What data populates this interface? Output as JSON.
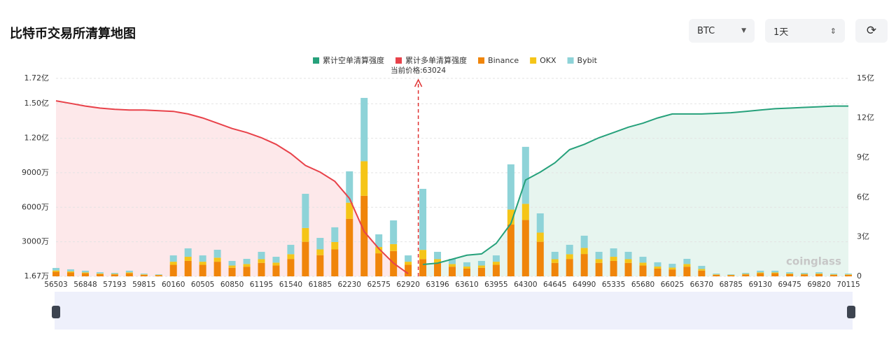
{
  "header": {
    "title": "比特币交易所清算地图",
    "symbol": "BTC",
    "interval": "1天"
  },
  "chart_data": {
    "type": "bar",
    "categories": [
      "56503",
      null,
      "56848",
      null,
      "57193",
      null,
      "59815",
      null,
      "60160",
      null,
      "60505",
      null,
      "60850",
      null,
      "61195",
      null,
      "61540",
      null,
      "61885",
      null,
      "62230",
      null,
      "62575",
      null,
      "62920",
      null,
      "63196",
      null,
      "63610",
      null,
      "63955",
      null,
      "64300",
      null,
      "64645",
      null,
      "64990",
      null,
      "65335",
      null,
      "65680",
      null,
      "66025",
      null,
      "66370",
      null,
      "68785",
      null,
      "69130",
      null,
      "69475",
      null,
      "69820",
      null,
      "70115"
    ],
    "series": [
      {
        "name": "累计空单清算强度",
        "type": "line",
        "axis": "y2",
        "color": "#26a17b",
        "fill": "#e7f5ef",
        "values": [
          null,
          null,
          null,
          null,
          null,
          null,
          null,
          null,
          null,
          null,
          null,
          null,
          null,
          null,
          null,
          null,
          null,
          null,
          null,
          null,
          null,
          null,
          null,
          null,
          null,
          90000000,
          100000000,
          130000000,
          160000000,
          170000000,
          250000000,
          400000000,
          730000000,
          790000000,
          860000000,
          960000000,
          1000000000,
          1050000000,
          1090000000,
          1130000000,
          1160000000,
          1200000000,
          1230000000,
          1230000000,
          1230000000,
          1235000000,
          1240000000,
          1250000000,
          1260000000,
          1270000000,
          1275000000,
          1280000000,
          1285000000,
          1290000000,
          1290000000
        ]
      },
      {
        "name": "累计多单清算强度",
        "type": "line",
        "axis": "y2",
        "color": "#e8424a",
        "fill": "#fde8ea",
        "values": [
          1330000000,
          1310000000,
          1290000000,
          1275000000,
          1265000000,
          1260000000,
          1260000000,
          1255000000,
          1250000000,
          1230000000,
          1200000000,
          1160000000,
          1120000000,
          1090000000,
          1050000000,
          1000000000,
          930000000,
          840000000,
          790000000,
          720000000,
          590000000,
          340000000,
          210000000,
          100000000,
          20000000,
          null,
          null,
          null,
          null,
          null,
          null,
          null,
          null,
          null,
          null,
          null,
          null,
          null,
          null,
          null,
          null,
          null,
          null,
          null,
          null,
          null,
          null,
          null,
          null,
          null,
          null,
          null,
          null,
          null,
          null
        ]
      },
      {
        "name": "Binance",
        "color": "#f0850a",
        "values": [
          4000000,
          3400000,
          2700000,
          2000000,
          1700000,
          2700000,
          1300000,
          1000000,
          10000000,
          13400000,
          10000000,
          12700000,
          7400000,
          8400000,
          11700000,
          9400000,
          15100000,
          30000000,
          18400000,
          23400000,
          50000000,
          70000000,
          20000000,
          22000000,
          10000000,
          15000000,
          11700000,
          8400000,
          6700000,
          7400000,
          10000000,
          45000000,
          49000000,
          30000000,
          11700000,
          15100000,
          19400000,
          11700000,
          13400000,
          11700000,
          9400000,
          6700000,
          6000000,
          8400000,
          5000000,
          1300000,
          1000000,
          1700000,
          2700000,
          2700000,
          2000000,
          1700000,
          2000000,
          1300000,
          1300000
        ]
      },
      {
        "name": "OKX",
        "color": "#f5c518",
        "values": [
          1100000,
          900000,
          700000,
          500000,
          400000,
          700000,
          400000,
          300000,
          2700000,
          3600000,
          2700000,
          3500000,
          2000000,
          2300000,
          3200000,
          2500000,
          4100000,
          12000000,
          5000000,
          6400000,
          14000000,
          30000000,
          5500000,
          6000000,
          2700000,
          8000000,
          3200000,
          2300000,
          1800000,
          2000000,
          2700000,
          13000000,
          14000000,
          8000000,
          3200000,
          4100000,
          5300000,
          3200000,
          3600000,
          3200000,
          2500000,
          1800000,
          1600000,
          2300000,
          1400000,
          400000,
          300000,
          400000,
          700000,
          700000,
          500000,
          400000,
          500000,
          400000,
          400000
        ]
      },
      {
        "name": "Bybit",
        "color": "#8ed3d8",
        "values": [
          2200000,
          1800000,
          1500000,
          1100000,
          900000,
          1500000,
          700000,
          500000,
          5500000,
          7300000,
          5500000,
          6900000,
          4000000,
          4500000,
          6400000,
          5100000,
          8200000,
          29700000,
          10000000,
          12800000,
          27200000,
          55000000,
          11000000,
          20600000,
          5500000,
          53000000,
          6400000,
          4500000,
          3700000,
          4000000,
          5500000,
          39300000,
          49500000,
          16700000,
          6400000,
          8200000,
          10600000,
          6400000,
          7300000,
          6400000,
          5100000,
          3700000,
          3300000,
          4500000,
          2700000,
          700000,
          500000,
          900000,
          1500000,
          1500000,
          1100000,
          900000,
          1100000,
          700000,
          700000
        ]
      }
    ],
    "ylim": [
      16700,
      172000000
    ],
    "yticks": [
      {
        "value": 16700,
        "label": "1.67万"
      },
      {
        "value": 30000000,
        "label": "3000万"
      },
      {
        "value": 60000000,
        "label": "6000万"
      },
      {
        "value": 90000000,
        "label": "9000万"
      },
      {
        "value": 120000000,
        "label": "1.20亿"
      },
      {
        "value": 150000000,
        "label": "1.50亿"
      },
      {
        "value": 172000000,
        "label": "1.72亿"
      }
    ],
    "y2lim": [
      0,
      1500000000
    ],
    "y2ticks": [
      0,
      {
        "value": 300000000,
        "label": "3亿"
      },
      {
        "value": 600000000,
        "label": "6亿"
      },
      {
        "value": 900000000,
        "label": "9亿"
      },
      {
        "value": 1200000000,
        "label": "12亿"
      },
      {
        "value": 1500000000,
        "label": "15亿"
      }
    ],
    "grid": true,
    "legend": "top",
    "annotation": "当前价格:63024",
    "watermark": "coinglass"
  }
}
